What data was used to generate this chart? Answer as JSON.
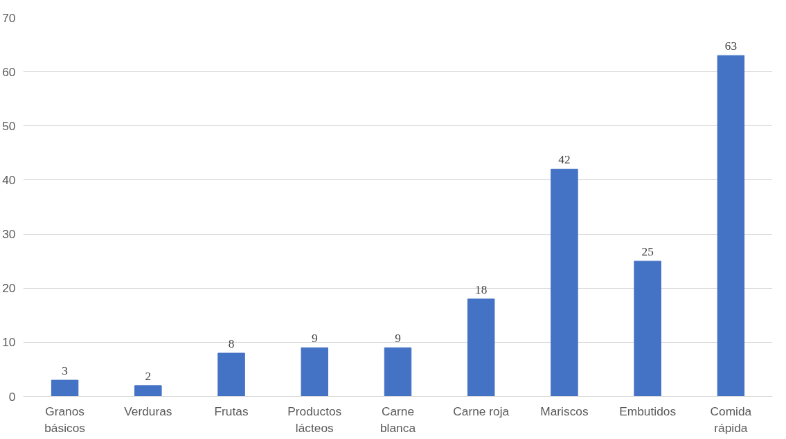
{
  "chart_data": {
    "type": "bar",
    "categories": [
      "Granos básicos",
      "Verduras",
      "Frutas",
      "Productos lácteos",
      "Carne blanca",
      "Carne roja",
      "Mariscos",
      "Embutidos",
      "Comida rápida"
    ],
    "values": [
      3,
      2,
      8,
      9,
      9,
      18,
      42,
      25,
      63
    ],
    "color": "#4472c4",
    "ylim": [
      0,
      70
    ],
    "yticks": [
      0,
      10,
      20,
      30,
      40,
      50,
      60,
      70
    ],
    "grid": "y",
    "data_labels": true
  }
}
